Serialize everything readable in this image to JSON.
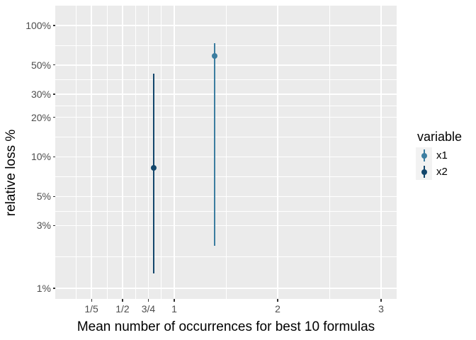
{
  "figure": {
    "background": "#FFFFFF"
  },
  "styles": {
    "panel_bg": "#EBEBEB",
    "grid_color": "#FFFFFF",
    "tick_color": "#333333",
    "tick_label_color": "#4D4D4D",
    "axis_title_color": "#000000",
    "legend_key_bg": "#F2F2F2"
  },
  "chart_data": {
    "type": "scatter",
    "subtype": "pointrange",
    "title": "",
    "xlabel": "Mean number of occurrences for best 10 formulas",
    "ylabel": "relative loss %",
    "grid": true,
    "x_axis": {
      "scale": "linear",
      "domain": [
        -0.15,
        3.15
      ],
      "breaks": [
        0.2,
        0.5,
        0.75,
        1,
        2,
        3
      ],
      "labels": [
        "1/5",
        "1/2",
        "3/4",
        "1",
        "2",
        "3"
      ],
      "minor_breaks": [
        0.05,
        0.35,
        0.625,
        0.875,
        1.5,
        2.5
      ]
    },
    "y_axis": {
      "scale": "log10",
      "unit": "percent",
      "domain_log10": [
        -0.081,
        2.151
      ],
      "breaks_pct": [
        100,
        50,
        30,
        20,
        10,
        5,
        3,
        1
      ],
      "labels": [
        "100%",
        "50%",
        "30%",
        "20%",
        "10%",
        "5%",
        "3%",
        "1%"
      ],
      "minor_breaks_pct": [
        70.7,
        38.7,
        24.5,
        14.1,
        7.07,
        3.87,
        1.73
      ]
    },
    "legend": {
      "title": "variable",
      "position": "right",
      "entries": [
        {
          "label": "x1",
          "color": "#3C7DA0"
        },
        {
          "label": "x2",
          "color": "#12466B"
        }
      ]
    },
    "series": [
      {
        "name": "x1",
        "color": "#3C7DA0",
        "points": [
          {
            "x": 1.39,
            "y": 59,
            "ymin": 2.1,
            "ymax": 73
          }
        ]
      },
      {
        "name": "x2",
        "color": "#12466B",
        "points": [
          {
            "x": 0.8,
            "y": 8.2,
            "ymin": 1.3,
            "ymax": 43
          }
        ]
      }
    ]
  }
}
